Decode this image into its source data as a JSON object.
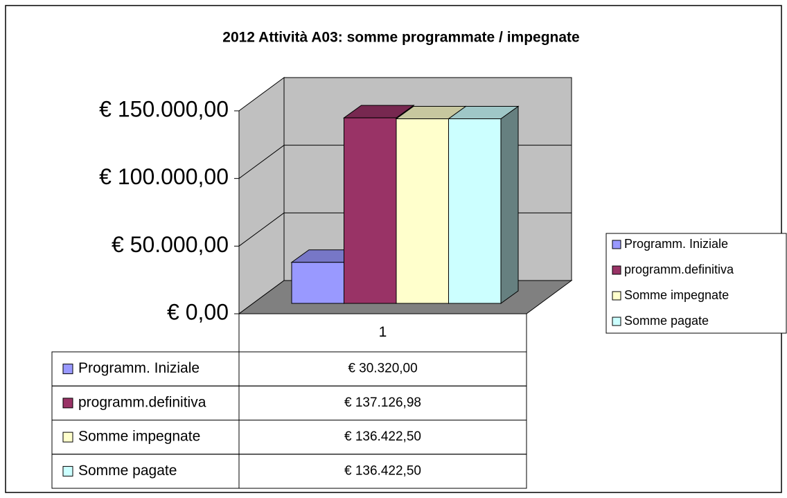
{
  "chart_data": {
    "type": "bar",
    "title": "2012 Attività A03: somme programmate / impegnate",
    "categories": [
      "1"
    ],
    "series": [
      {
        "name": "Programm. Iniziale",
        "color": "#9999ff",
        "values": [
          30320
        ],
        "value_labels": [
          "€ 30.320,00"
        ]
      },
      {
        "name": "programm.definitiva",
        "color": "#993366",
        "values": [
          137126.98
        ],
        "value_labels": [
          "€ 137.126,98"
        ]
      },
      {
        "name": "Somme impegnate",
        "color": "#ffffcc",
        "values": [
          136422.5
        ],
        "value_labels": [
          "€ 136.422,50"
        ]
      },
      {
        "name": "Somme pagate",
        "color": "#ccffff",
        "values": [
          136422.5
        ],
        "value_labels": [
          "€ 136.422,50"
        ]
      }
    ],
    "ylim": [
      0,
      150000
    ],
    "yticks": [
      {
        "value": 0,
        "label": "€ 0,00"
      },
      {
        "value": 50000,
        "label": "€ 50.000,00"
      },
      {
        "value": 100000,
        "label": "€ 100.000,00"
      },
      {
        "value": 150000,
        "label": "€ 150.000,00"
      }
    ],
    "grid": true
  }
}
